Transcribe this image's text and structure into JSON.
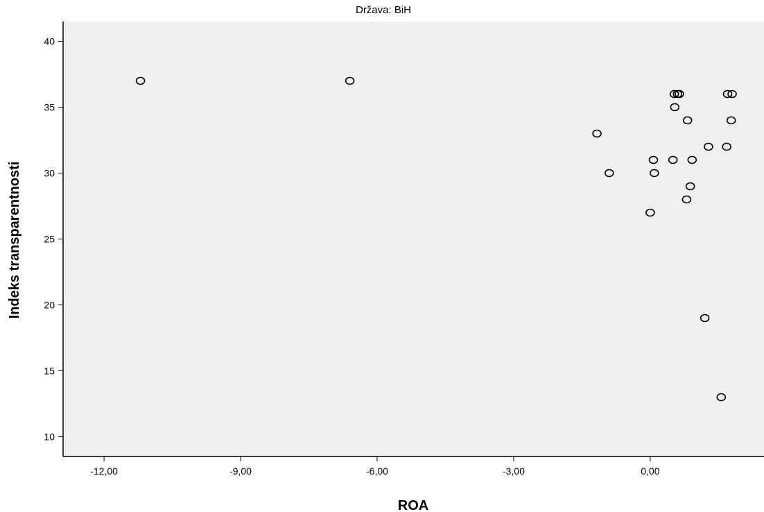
{
  "chart_data": {
    "type": "scatter",
    "title": "Država: BiH",
    "xlabel": "ROA",
    "ylabel": "Indeks transparentnosti",
    "xlim": [
      -12.9,
      2.5
    ],
    "ylim": [
      8.5,
      41.5
    ],
    "xticks": [
      -12,
      -9,
      -6,
      -3,
      0
    ],
    "xtick_labels": [
      "-12,00",
      "-9,00",
      "-6,00",
      "-3,00",
      "0,00"
    ],
    "yticks": [
      10,
      15,
      20,
      25,
      30,
      35,
      40
    ],
    "ytick_labels": [
      "10",
      "15",
      "20",
      "25",
      "30",
      "35",
      "40"
    ],
    "grid": false,
    "background": "#efefef",
    "marker": "open-circle",
    "points": [
      {
        "x": -11.2,
        "y": 37
      },
      {
        "x": -6.6,
        "y": 37
      },
      {
        "x": -1.17,
        "y": 33
      },
      {
        "x": -0.9,
        "y": 30
      },
      {
        "x": 0.0,
        "y": 27
      },
      {
        "x": 0.07,
        "y": 31
      },
      {
        "x": 0.09,
        "y": 30
      },
      {
        "x": 0.5,
        "y": 31
      },
      {
        "x": 0.53,
        "y": 36
      },
      {
        "x": 0.6,
        "y": 36
      },
      {
        "x": 0.64,
        "y": 36
      },
      {
        "x": 0.54,
        "y": 35
      },
      {
        "x": 0.8,
        "y": 28
      },
      {
        "x": 0.82,
        "y": 34
      },
      {
        "x": 0.88,
        "y": 29
      },
      {
        "x": 0.92,
        "y": 31
      },
      {
        "x": 1.2,
        "y": 19
      },
      {
        "x": 1.28,
        "y": 32
      },
      {
        "x": 1.56,
        "y": 13
      },
      {
        "x": 1.68,
        "y": 32
      },
      {
        "x": 1.7,
        "y": 36
      },
      {
        "x": 1.8,
        "y": 36
      },
      {
        "x": 1.78,
        "y": 34
      }
    ]
  }
}
